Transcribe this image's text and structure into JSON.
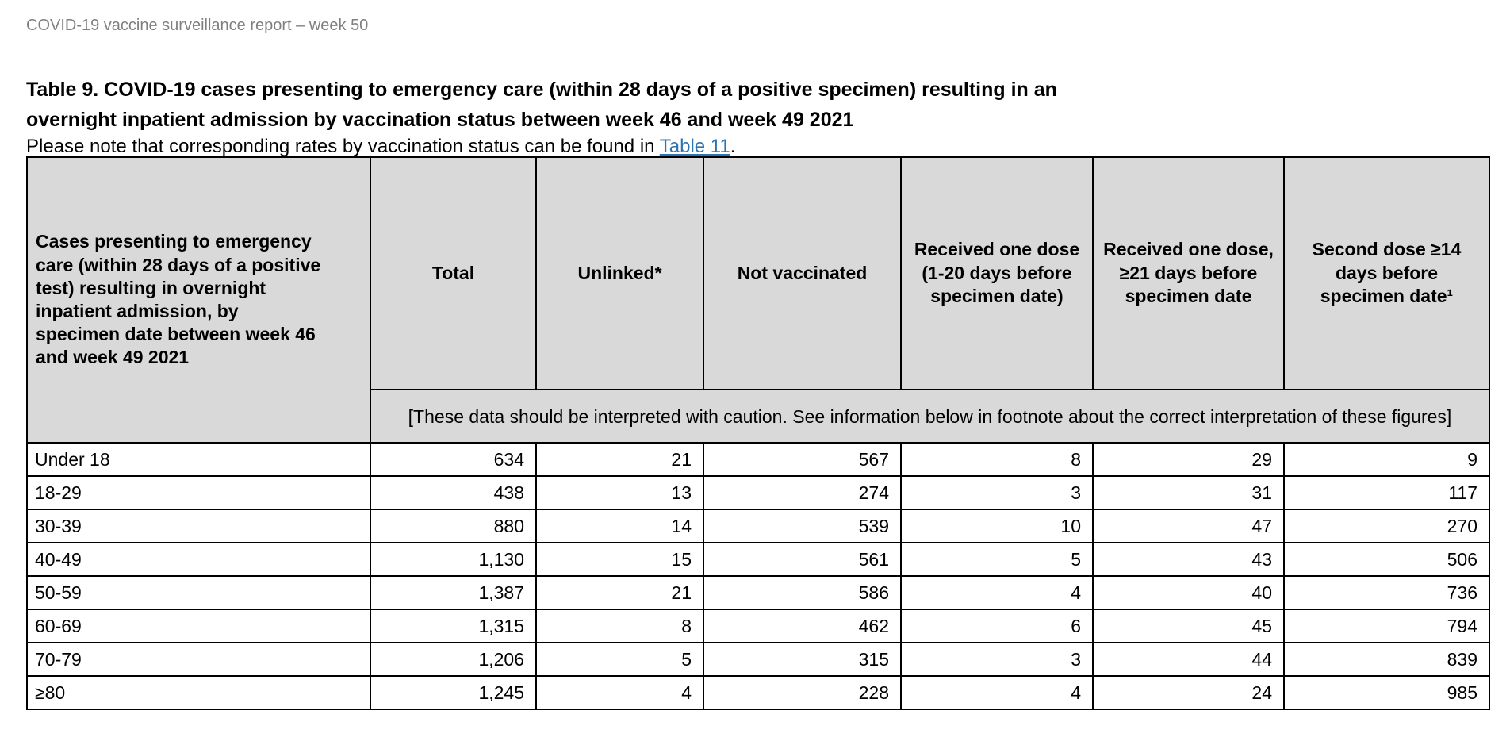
{
  "page": {
    "header": "COVID-19 vaccine surveillance report – week 50",
    "title_line1": "Table 9. COVID-19 cases presenting to emergency care (within 28 days of a positive specimen) resulting in an",
    "title_line2": "overnight inpatient admission by vaccination status between week 46 and week 49 2021",
    "note_prefix": "Please note that corresponding rates by vaccination status can be found in ",
    "note_link": "Table 11",
    "note_suffix": "."
  },
  "colors": {
    "header_bg": "#d9d9d9",
    "link": "#2e74b5",
    "muted_text": "#7f7f7f",
    "border": "#000000"
  },
  "table": {
    "row_header_label": "Cases presenting to emergency care (within 28 days of a positive test) resulting in overnight inpatient admission, by specimen date between week 46 and week 49 2021",
    "columns": [
      "Total",
      "Unlinked*",
      "Not vaccinated",
      "Received one dose (1-20 days before specimen date)",
      "Received one dose, ≥21 days before specimen date",
      "Second dose ≥14 days before specimen date¹"
    ],
    "caution_note": "[These data should be interpreted with caution. See information below in footnote about the correct interpretation of these figures]",
    "rows": [
      {
        "label": "Under 18",
        "values": [
          "634",
          "21",
          "567",
          "8",
          "29",
          "9"
        ]
      },
      {
        "label": "18-29",
        "values": [
          "438",
          "13",
          "274",
          "3",
          "31",
          "117"
        ]
      },
      {
        "label": "30-39",
        "values": [
          "880",
          "14",
          "539",
          "10",
          "47",
          "270"
        ]
      },
      {
        "label": "40-49",
        "values": [
          "1,130",
          "15",
          "561",
          "5",
          "43",
          "506"
        ]
      },
      {
        "label": "50-59",
        "values": [
          "1,387",
          "21",
          "586",
          "4",
          "40",
          "736"
        ]
      },
      {
        "label": "60-69",
        "values": [
          "1,315",
          "8",
          "462",
          "6",
          "45",
          "794"
        ]
      },
      {
        "label": "70-79",
        "values": [
          "1,206",
          "5",
          "315",
          "3",
          "44",
          "839"
        ]
      },
      {
        "label": "≥80",
        "values": [
          "1,245",
          "4",
          "228",
          "4",
          "24",
          "985"
        ]
      }
    ]
  }
}
